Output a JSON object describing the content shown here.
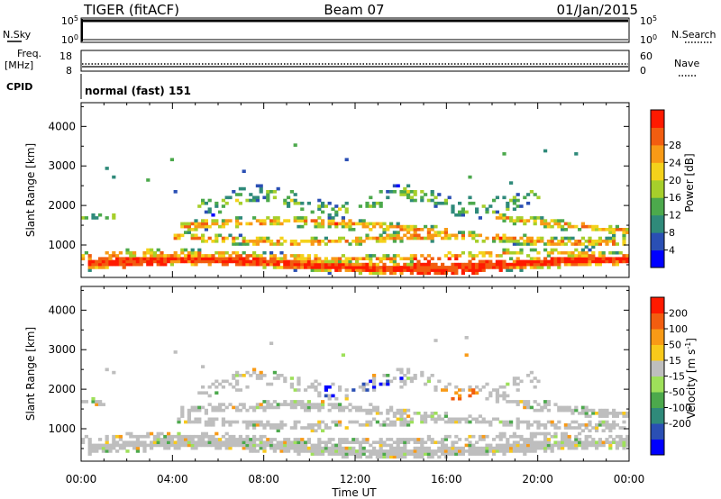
{
  "header": {
    "radar": "TIGER (fitACF)",
    "beam": "Beam 07",
    "date": "01/Jan/2015"
  },
  "nsky_panel": {
    "label": "N.Sky",
    "yticks": [
      "10^5",
      "10^0"
    ],
    "right_label": "N.Search",
    "right_yticks": [
      "10^5",
      "10^0"
    ]
  },
  "freq_panel": {
    "label_line1": "Freq.",
    "label_line2": "[MHz]",
    "yticks": [
      "18",
      "8"
    ],
    "right_label": "Nave",
    "right_yticks": [
      "60",
      "0"
    ]
  },
  "cpid_panel": {
    "label": "CPID",
    "mode": "normal (fast) 151"
  },
  "chart_data": [
    {
      "type": "heatmap",
      "name": "power",
      "ylabel": "Slant Range [km]",
      "yticks": [
        1000,
        2000,
        3000,
        4000
      ],
      "ylim": [
        180,
        4600
      ],
      "xlim": [
        0,
        24
      ],
      "colorbar": {
        "label": "Power [dB]",
        "ticks": [
          "4",
          "8",
          "12",
          "16",
          "20",
          "24",
          "28"
        ],
        "colors": [
          "#0000ff",
          "#2a4fb4",
          "#2f8a7a",
          "#4ca94c",
          "#a6cf2b",
          "#f4d21b",
          "#f89a16",
          "#f25d10",
          "#ff1a00"
        ]
      }
    },
    {
      "type": "heatmap",
      "name": "velocity",
      "ylabel": "Slant Range [km]",
      "yticks": [
        1000,
        2000,
        3000,
        4000
      ],
      "ylim": [
        180,
        4600
      ],
      "xlim": [
        0,
        24
      ],
      "colorbar": {
        "label": "Velocity [m s^-1]",
        "ticks": [
          "200",
          "100",
          "50",
          "15",
          "-15",
          "-50",
          "-100",
          "-200"
        ],
        "colors": [
          "#0000ff",
          "#2a4fb4",
          "#2f8a7a",
          "#4ca94c",
          "#9ee05a",
          "#bebebe",
          "#f8c91b",
          "#f89a16",
          "#f25d10",
          "#ff1a00"
        ]
      }
    }
  ],
  "xaxis": {
    "ticks": [
      "00:00",
      "04:00",
      "08:00",
      "12:00",
      "16:00",
      "20:00",
      "00:00"
    ],
    "label": "Time UT"
  }
}
